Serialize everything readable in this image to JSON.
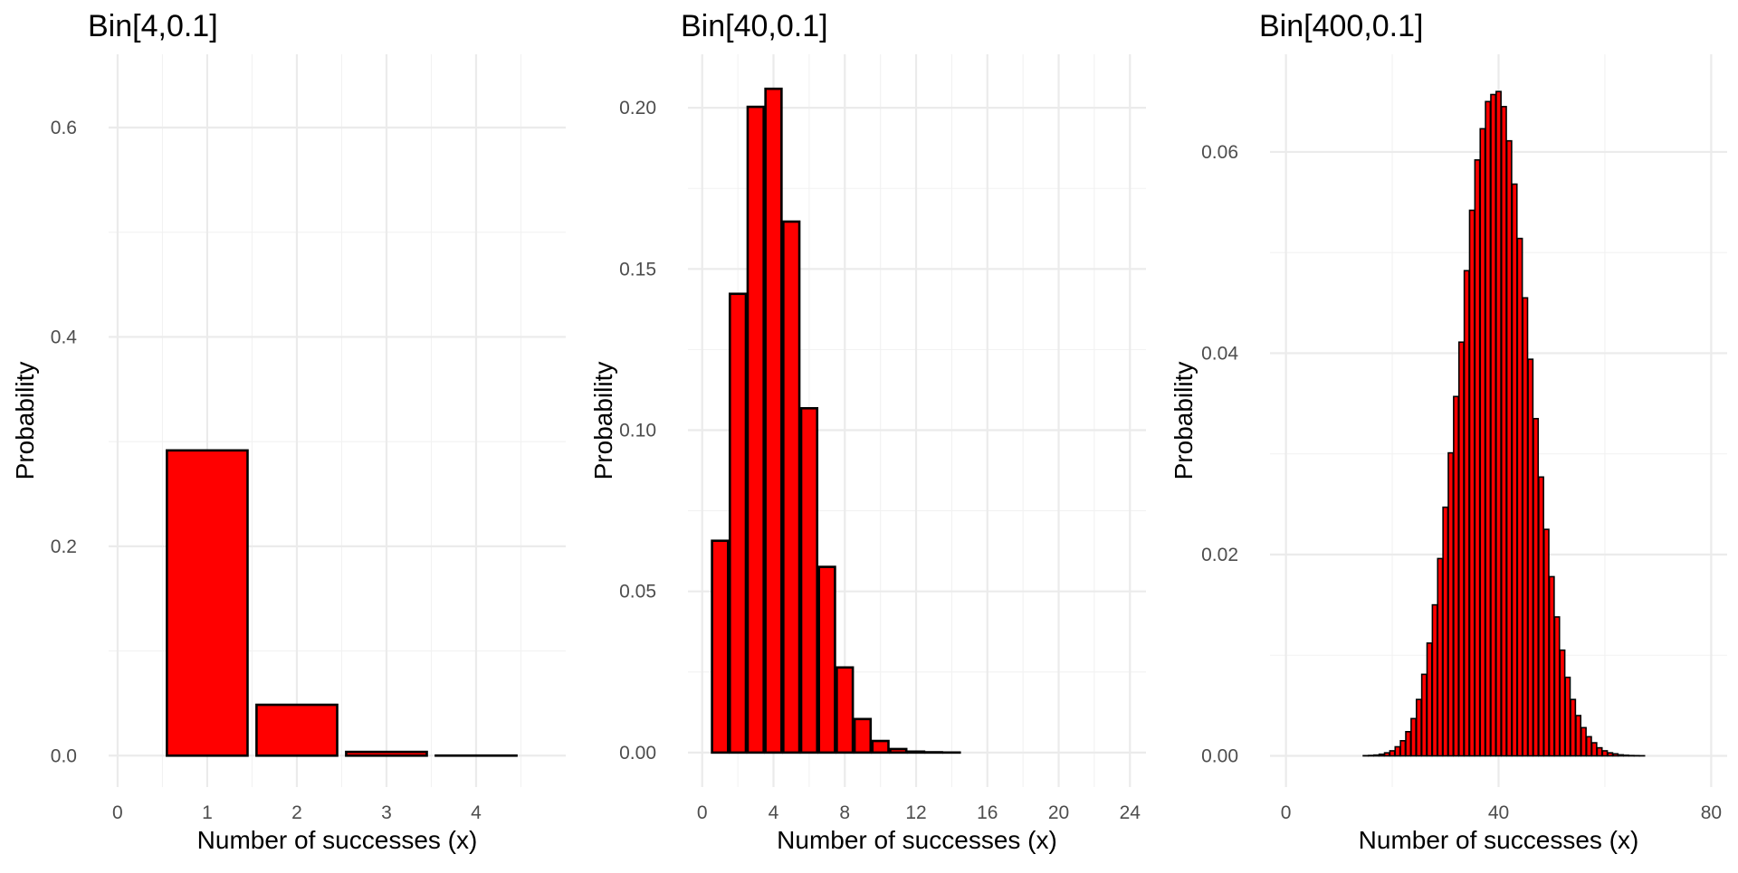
{
  "chart_data": [
    {
      "type": "bar",
      "title": "Bin[4,0.1]",
      "xlabel": "Number of successes (x)",
      "ylabel": "Probability",
      "x": [
        1,
        2,
        3,
        4
      ],
      "values": [
        0.2916,
        0.0486,
        0.0036,
        0.0001
      ],
      "xlim": [
        -0.1,
        5
      ],
      "ylim": [
        -0.03,
        0.67
      ],
      "xticks": [
        0,
        1,
        2,
        3,
        4
      ],
      "xtick_labels": [
        "0",
        "1",
        "2",
        "3",
        "4"
      ],
      "yticks": [
        0,
        0.2,
        0.4,
        0.6
      ],
      "ytick_labels": [
        "0.0",
        "0.2",
        "0.4",
        "0.6"
      ],
      "bar_fill": "#ff0000",
      "bar_stroke": "#000000",
      "bar_width": 0.9,
      "grid": true,
      "legend": "none"
    },
    {
      "type": "bar",
      "title": "Bin[40,0.1]",
      "xlabel": "Number of successes (x)",
      "ylabel": "Probability",
      "x": [
        1,
        2,
        3,
        4,
        5,
        6,
        7,
        8,
        9,
        10,
        11,
        12,
        13,
        14,
        15,
        16,
        17,
        18,
        19,
        20,
        21,
        22,
        23
      ],
      "values": [
        0.0657,
        0.1423,
        0.2003,
        0.2059,
        0.1647,
        0.1068,
        0.0576,
        0.0264,
        0.0104,
        0.0036,
        0.0011,
        0.0003,
        0.0001,
        2e-05,
        0,
        0,
        0,
        0,
        0,
        0,
        0,
        0,
        0
      ],
      "xlim": [
        -0.8,
        24.9
      ],
      "ylim": [
        -0.0107,
        0.2166
      ],
      "xticks": [
        0,
        4,
        8,
        12,
        16,
        20,
        24
      ],
      "xtick_labels": [
        "0",
        "4",
        "8",
        "12",
        "16",
        "20",
        "24"
      ],
      "yticks": [
        0,
        0.05,
        0.1,
        0.15,
        0.2
      ],
      "ytick_labels": [
        "0.00",
        "0.05",
        "0.10",
        "0.15",
        "0.20"
      ],
      "bar_fill": "#ff0000",
      "bar_stroke": "#000000",
      "bar_width": 0.9,
      "grid": true,
      "legend": "none"
    },
    {
      "type": "bar",
      "title": "Bin[400,0.1]",
      "xlabel": "Number of successes (x)",
      "ylabel": "Probability",
      "x": [
        1,
        2,
        3,
        4,
        5,
        6,
        7,
        8,
        9,
        10,
        11,
        12,
        13,
        14,
        15,
        16,
        17,
        18,
        19,
        20,
        21,
        22,
        23,
        24,
        25,
        26,
        27,
        28,
        29,
        30,
        31,
        32,
        33,
        34,
        35,
        36,
        37,
        38,
        39,
        40,
        41,
        42,
        43,
        44,
        45,
        46,
        47,
        48,
        49,
        50,
        51,
        52,
        53,
        54,
        55,
        56,
        57,
        58,
        59,
        60,
        61,
        62,
        63,
        64,
        65,
        66,
        67,
        68,
        69,
        70,
        71,
        72,
        73,
        74,
        75,
        76,
        77,
        78,
        79
      ],
      "values": [
        0,
        0,
        0,
        0,
        0,
        0,
        0,
        0,
        0,
        0,
        0,
        0,
        0,
        0,
        2e-05,
        4e-05,
        8e-05,
        0.00016,
        0.0003,
        0.0005,
        0.0009,
        0.0015,
        0.0024,
        0.0037,
        0.0056,
        0.0081,
        0.0112,
        0.015,
        0.0196,
        0.0247,
        0.0301,
        0.0357,
        0.0411,
        0.0482,
        0.0542,
        0.0592,
        0.0623,
        0.065,
        0.0657,
        0.066,
        0.0645,
        0.0611,
        0.0568,
        0.0514,
        0.0455,
        0.0394,
        0.0335,
        0.0277,
        0.0225,
        0.0178,
        0.0138,
        0.0105,
        0.0078,
        0.0056,
        0.004,
        0.0028,
        0.0019,
        0.0013,
        0.0008,
        0.0005,
        0.0003,
        0.0002,
        0.0001,
        6e-05,
        3e-05,
        2e-05,
        1e-05,
        0,
        0,
        0,
        0,
        0,
        0,
        0,
        0,
        0,
        0,
        0,
        0
      ],
      "xlim": [
        -3,
        83
      ],
      "ylim": [
        -0.0031,
        0.0697
      ],
      "xticks": [
        0,
        40,
        80
      ],
      "xtick_labels": [
        "0",
        "40",
        "80"
      ],
      "yticks": [
        0,
        0.02,
        0.04,
        0.06
      ],
      "ytick_labels": [
        "0.00",
        "0.02",
        "0.04",
        "0.06"
      ],
      "bar_fill": "#ff0000",
      "bar_stroke": "#000000",
      "bar_width": 0.9,
      "grid": true,
      "legend": "none"
    }
  ]
}
